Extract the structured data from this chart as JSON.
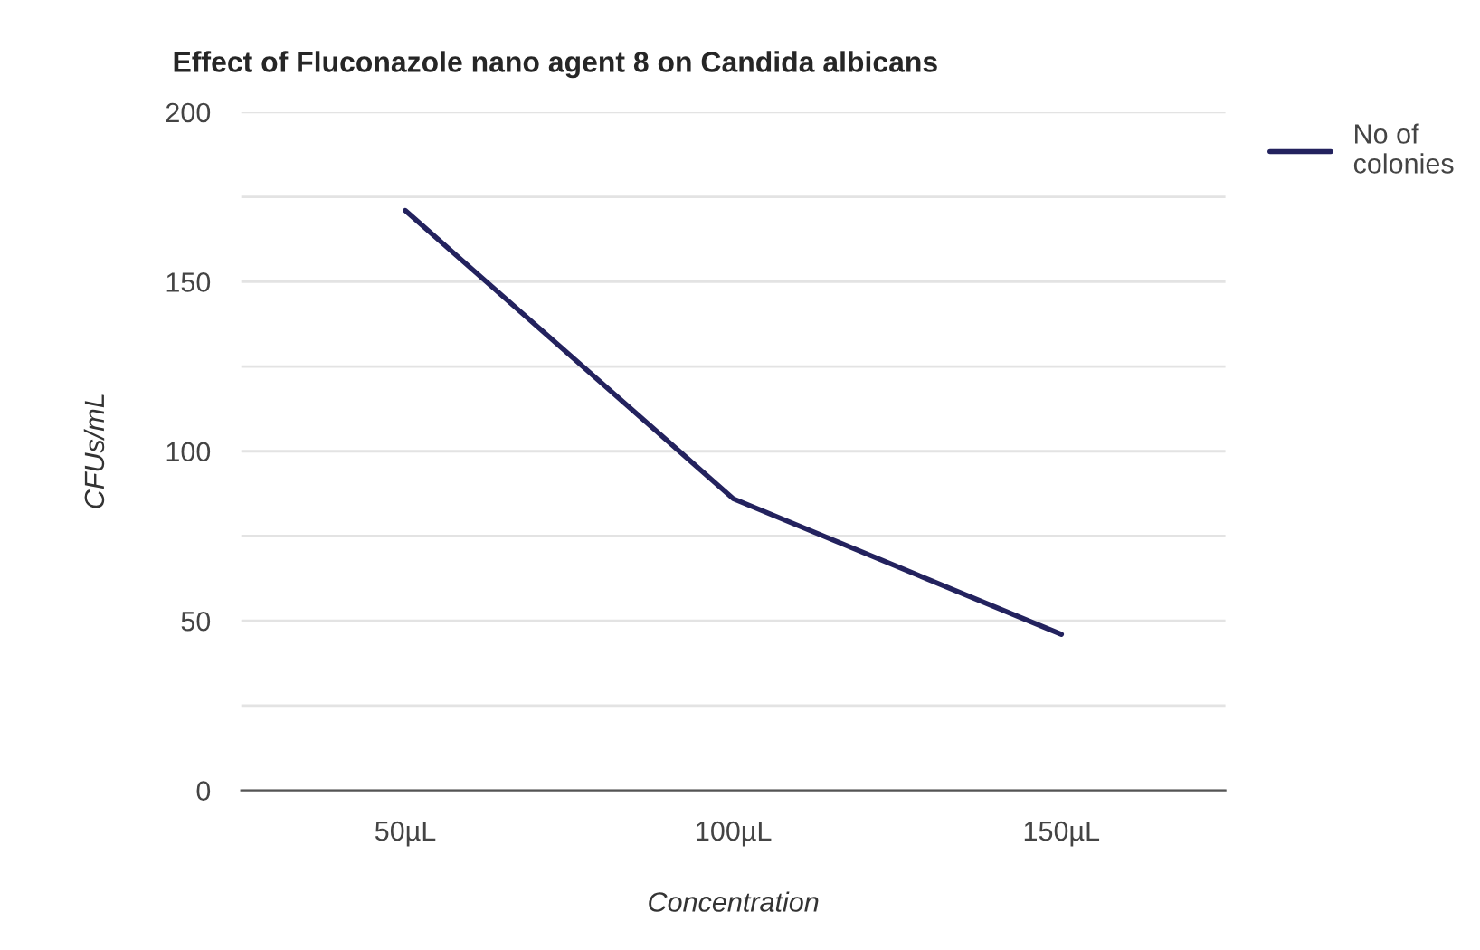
{
  "chart_data": {
    "type": "line",
    "title": "Effect of Fluconazole nano agent 8 on Candida albicans",
    "xlabel": "Concentration",
    "ylabel": "CFUs/mL",
    "categories": [
      "50µL",
      "100µL",
      "150µL"
    ],
    "series": [
      {
        "name": "No of\ncolonies",
        "color": "#23225e",
        "values": [
          171,
          86,
          46
        ]
      }
    ],
    "ylim": [
      0,
      200
    ],
    "yticks": [
      0,
      {
        "value": 25,
        "label": null
      },
      50,
      {
        "value": 75,
        "label": null
      },
      100,
      {
        "value": 125,
        "label": null
      },
      150,
      {
        "value": 175,
        "label": null
      },
      200
    ],
    "grid": "y",
    "legend": "top right"
  }
}
